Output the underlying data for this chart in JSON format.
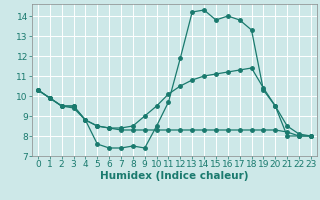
{
  "xlabel": "Humidex (Indice chaleur)",
  "bg_color": "#cde8e8",
  "line_color": "#1a7a6e",
  "grid_color": "#ffffff",
  "xlim": [
    -0.5,
    23.5
  ],
  "ylim": [
    7,
    14.6
  ],
  "yticks": [
    7,
    8,
    9,
    10,
    11,
    12,
    13,
    14
  ],
  "xticks": [
    0,
    1,
    2,
    3,
    4,
    5,
    6,
    7,
    8,
    9,
    10,
    11,
    12,
    13,
    14,
    15,
    16,
    17,
    18,
    19,
    20,
    21,
    22,
    23
  ],
  "line1_x": [
    0,
    1,
    2,
    3,
    4,
    5,
    6,
    7,
    8,
    9,
    10,
    11,
    12,
    13,
    14,
    15,
    16,
    17,
    18,
    19,
    20,
    21,
    22,
    23
  ],
  "line1_y": [
    10.3,
    9.9,
    9.5,
    9.5,
    8.8,
    7.6,
    7.4,
    7.4,
    7.5,
    7.4,
    8.5,
    9.7,
    11.9,
    14.2,
    14.3,
    13.8,
    14.0,
    13.8,
    13.3,
    10.3,
    9.5,
    8.0,
    8.0,
    8.0
  ],
  "line2_x": [
    0,
    1,
    2,
    3,
    4,
    5,
    6,
    7,
    8,
    9,
    10,
    11,
    12,
    13,
    14,
    15,
    16,
    17,
    18,
    19,
    20,
    21,
    22,
    23
  ],
  "line2_y": [
    10.3,
    9.9,
    9.5,
    9.5,
    8.8,
    8.5,
    8.4,
    8.3,
    8.3,
    8.3,
    8.3,
    8.3,
    8.3,
    8.3,
    8.3,
    8.3,
    8.3,
    8.3,
    8.3,
    8.3,
    8.3,
    8.2,
    8.0,
    8.0
  ],
  "line3_x": [
    0,
    1,
    2,
    3,
    4,
    5,
    6,
    7,
    8,
    9,
    10,
    11,
    12,
    13,
    14,
    15,
    16,
    17,
    18,
    19,
    20,
    21,
    22,
    23
  ],
  "line3_y": [
    10.3,
    9.9,
    9.5,
    9.4,
    8.8,
    8.5,
    8.4,
    8.4,
    8.5,
    9.0,
    9.5,
    10.1,
    10.5,
    10.8,
    11.0,
    11.1,
    11.2,
    11.3,
    11.4,
    10.4,
    9.5,
    8.5,
    8.1,
    8.0
  ],
  "marker_size": 2.5,
  "tick_fontsize": 6.5,
  "xlabel_fontsize": 7.5
}
